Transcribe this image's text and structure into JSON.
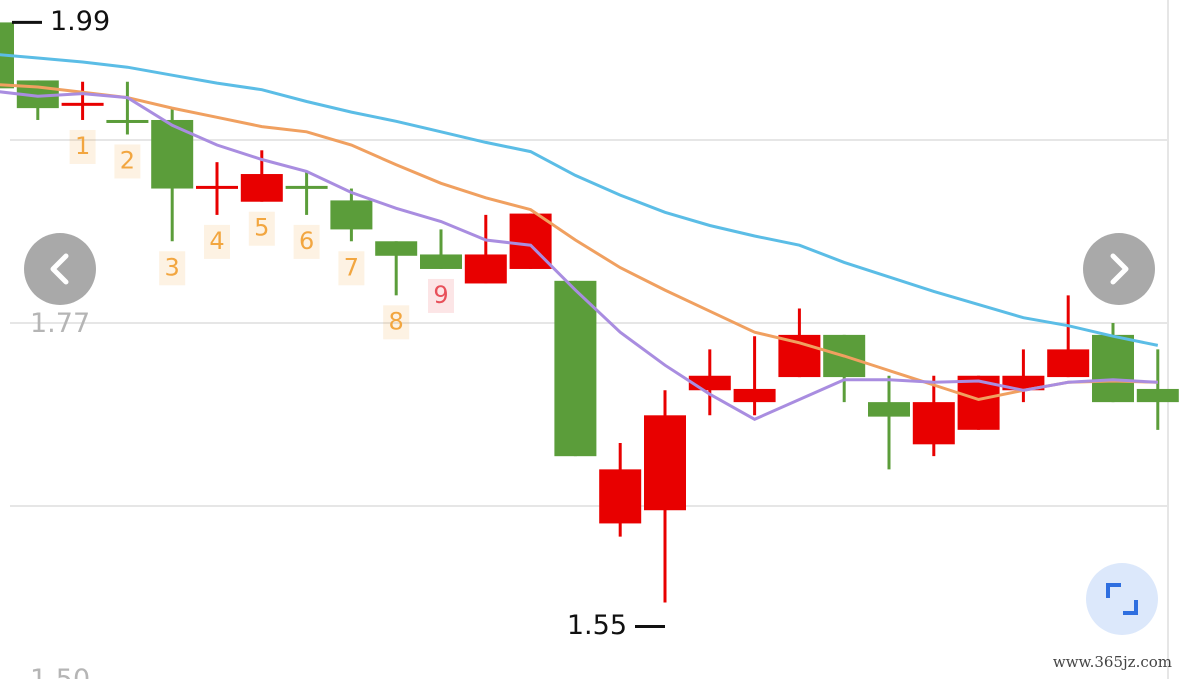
{
  "chart_data": {
    "type": "candlestick",
    "ylim": [
      1.492,
      2.007
    ],
    "yticks": [
      1.77,
      {
        "value": 1.5,
        "label": "1.50"
      }
    ],
    "up_color": "#e80000",
    "down_color": "#5b9d3a",
    "open": [
      1.99,
      1.946,
      1.927,
      1.916,
      1.916,
      1.864,
      1.854,
      1.866,
      1.855,
      1.824,
      1.814,
      1.792,
      1.803,
      1.794,
      1.61,
      1.62,
      1.711,
      1.702,
      1.721,
      1.753,
      1.702,
      1.67,
      1.681,
      1.711,
      1.721,
      1.753,
      1.712
    ],
    "high": [
      1.99,
      1.946,
      1.945,
      1.945,
      1.925,
      1.884,
      1.893,
      1.877,
      1.864,
      1.824,
      1.833,
      1.844,
      1.845,
      1.794,
      1.671,
      1.711,
      1.742,
      1.752,
      1.773,
      1.753,
      1.722,
      1.722,
      1.722,
      1.742,
      1.783,
      1.762,
      1.742
    ],
    "low": [
      1.935,
      1.916,
      1.916,
      1.905,
      1.824,
      1.844,
      1.854,
      1.844,
      1.824,
      1.783,
      1.803,
      1.792,
      1.803,
      1.661,
      1.6,
      1.55,
      1.692,
      1.692,
      1.721,
      1.702,
      1.651,
      1.661,
      1.681,
      1.702,
      1.721,
      1.702,
      1.681
    ],
    "close": [
      1.94,
      1.925,
      1.929,
      1.915,
      1.864,
      1.866,
      1.875,
      1.864,
      1.833,
      1.813,
      1.803,
      1.814,
      1.845,
      1.661,
      1.651,
      1.692,
      1.722,
      1.712,
      1.753,
      1.721,
      1.691,
      1.702,
      1.722,
      1.722,
      1.742,
      1.702,
      1.702
    ],
    "series": [
      {
        "color": "#5bbde6",
        "values": [
          1.966,
          1.963,
          1.96,
          1.956,
          1.95,
          1.944,
          1.939,
          1.93,
          1.922,
          1.915,
          1.907,
          1.899,
          1.892,
          1.874,
          1.859,
          1.846,
          1.836,
          1.828,
          1.821,
          1.808,
          1.797,
          1.786,
          1.776,
          1.766,
          1.76,
          1.752,
          1.745
        ]
      },
      {
        "color": "#f0a060",
        "values": [
          1.943,
          1.941,
          1.937,
          1.933,
          1.925,
          1.918,
          1.911,
          1.907,
          1.897,
          1.882,
          1.868,
          1.857,
          1.848,
          1.825,
          1.804,
          1.787,
          1.771,
          1.755,
          1.747,
          1.737,
          1.726,
          1.715,
          1.704,
          1.711,
          1.717,
          1.718,
          1.717
        ]
      },
      {
        "color": "#a98de0",
        "values": [
          1.938,
          1.934,
          1.936,
          1.933,
          1.912,
          1.897,
          1.886,
          1.877,
          1.861,
          1.849,
          1.839,
          1.825,
          1.821,
          1.787,
          1.755,
          1.73,
          1.708,
          1.689,
          1.704,
          1.719,
          1.719,
          1.717,
          1.718,
          1.711,
          1.717,
          1.719,
          1.717
        ]
      }
    ],
    "max_label": 1.99,
    "min_label": 1.55,
    "signals": [
      {
        "label": "1",
        "color": "#f2a640"
      },
      {
        "label": "2",
        "color": "#f2a640"
      },
      {
        "label": "3",
        "color": "#f2a640"
      },
      {
        "label": "4",
        "color": "#f2a640"
      },
      {
        "label": "5",
        "color": "#f2a640"
      },
      {
        "label": "6",
        "color": "#f2a640"
      },
      {
        "label": "7",
        "color": "#f2a640"
      },
      {
        "label": "8",
        "color": "#f2a640"
      },
      {
        "label": "9",
        "color": "#e8505a"
      }
    ]
  },
  "watermark": "www.365jz.com"
}
